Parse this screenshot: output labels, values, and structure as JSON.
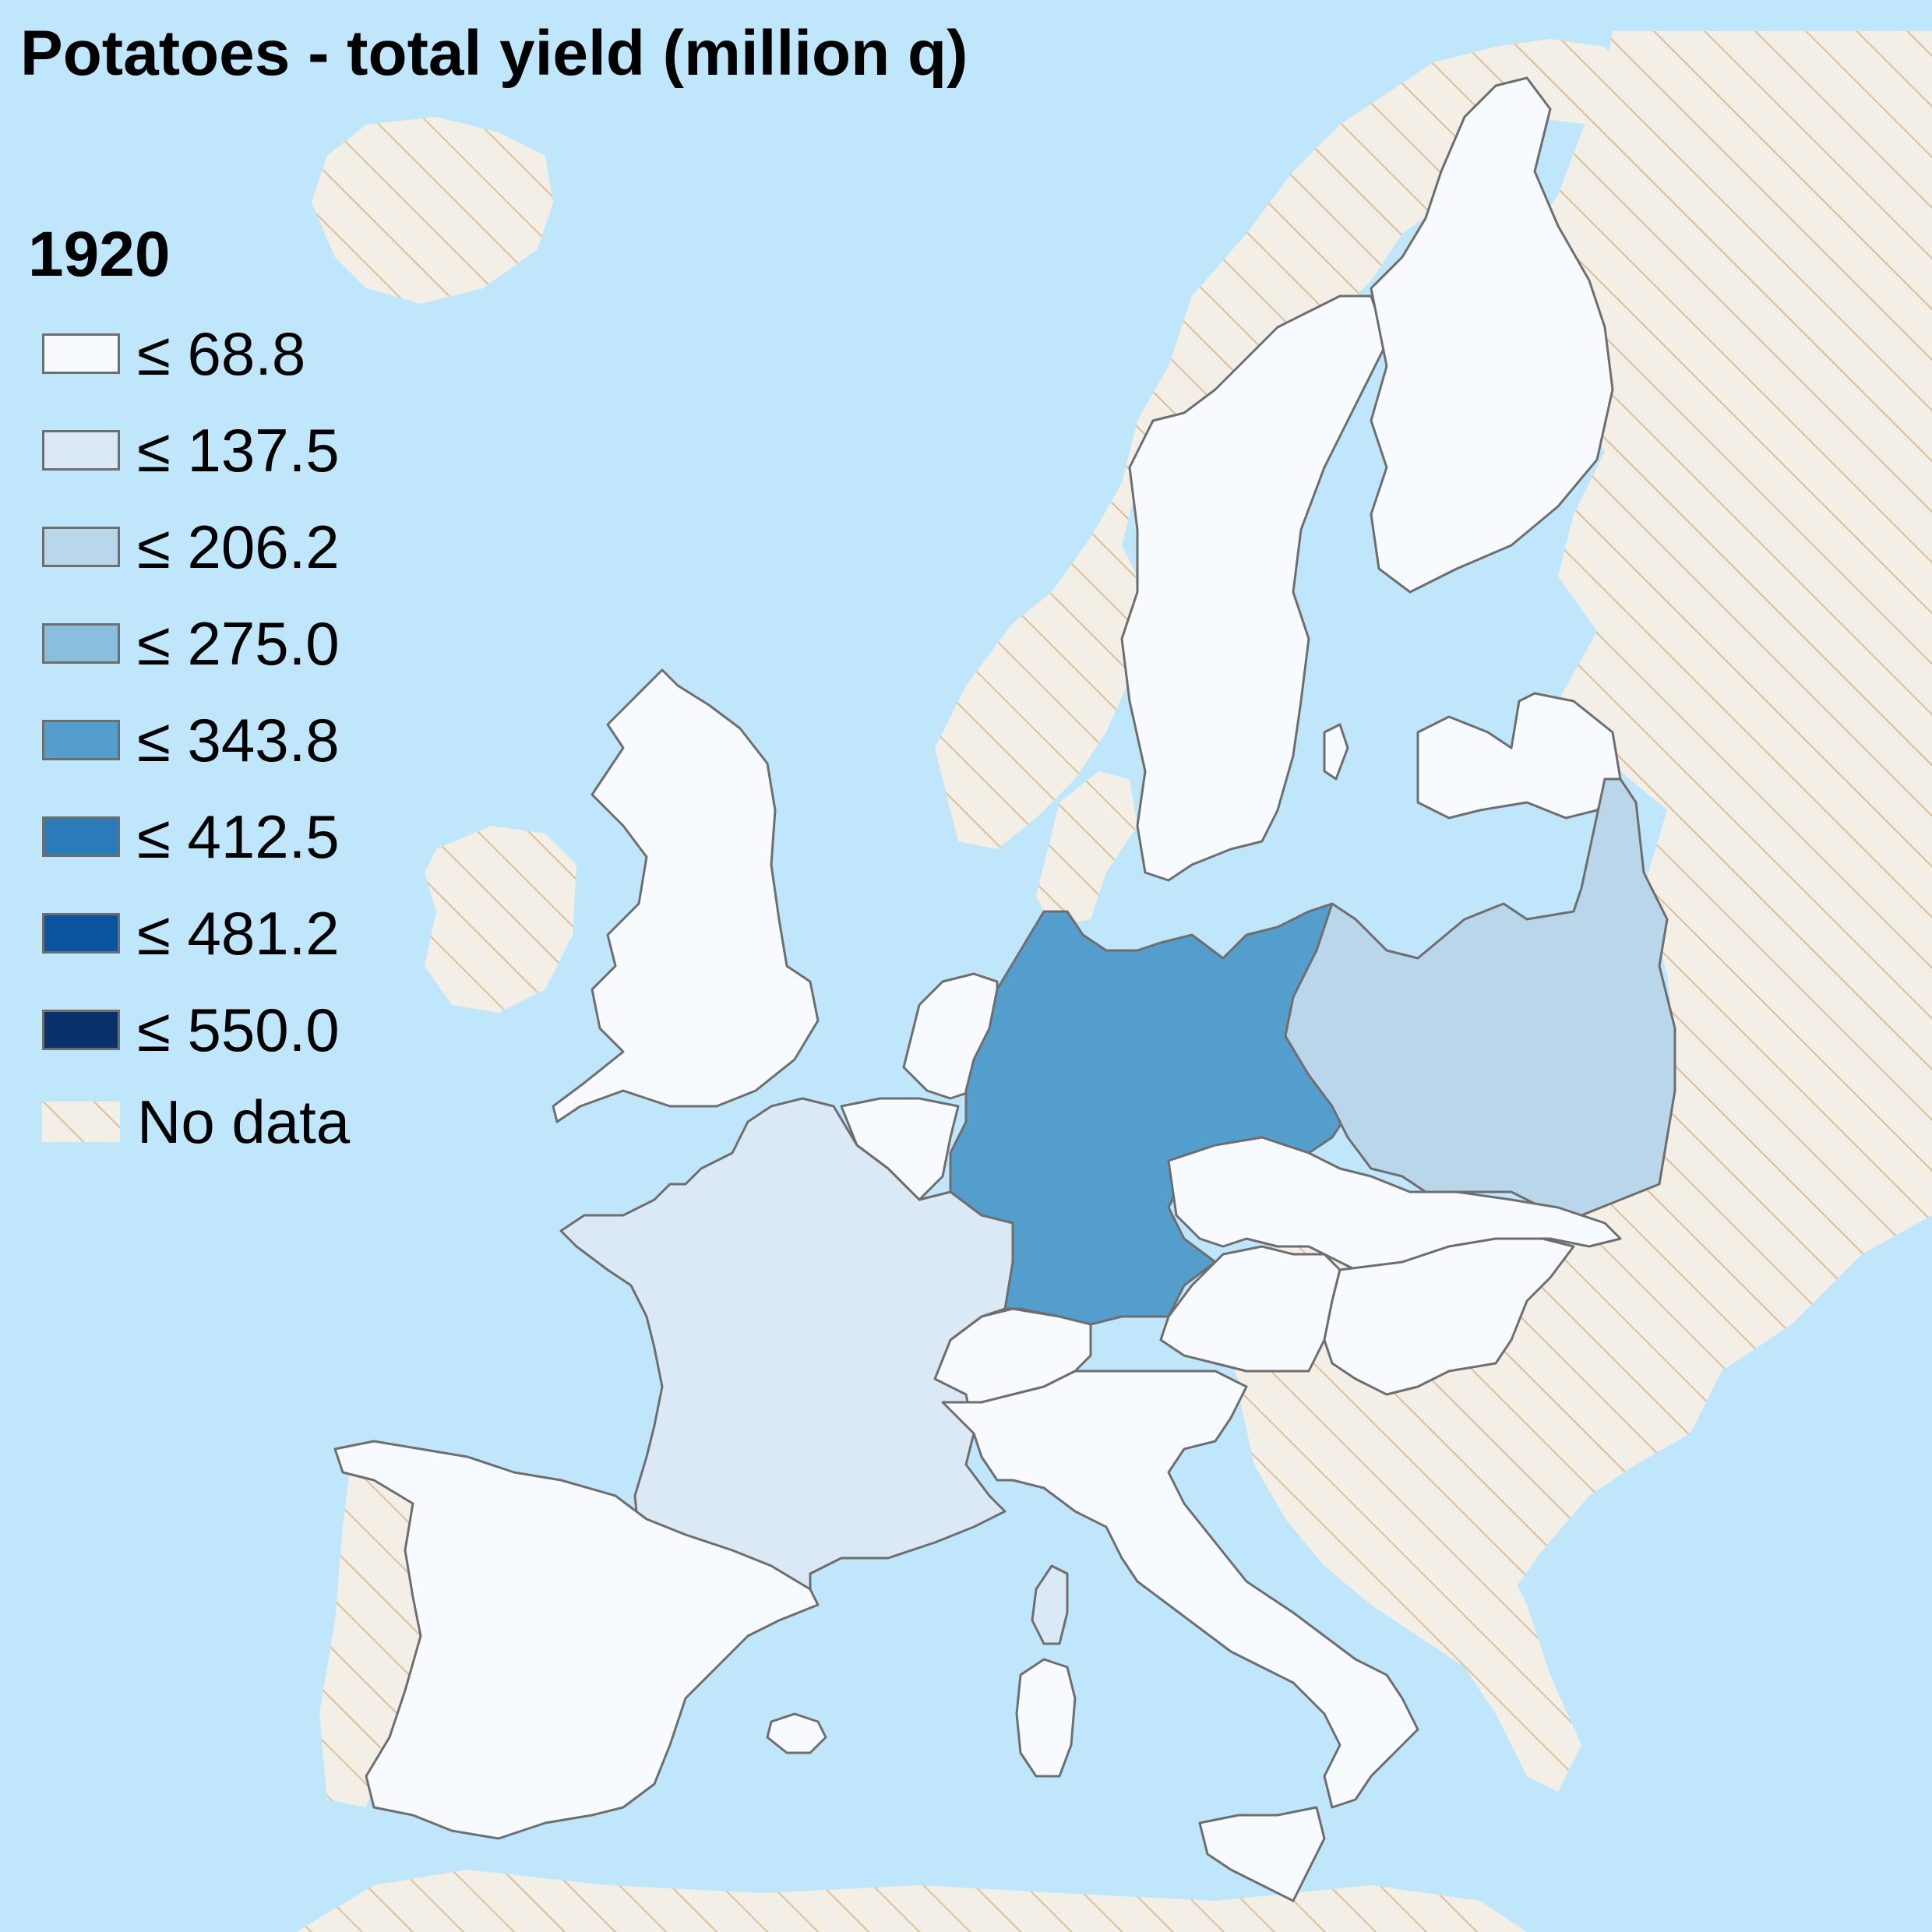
{
  "title": "Potatoes - total yield (million q)",
  "legend": {
    "year": "1920",
    "items": [
      {
        "label": "≤ 68.8",
        "color": "#f7fbff"
      },
      {
        "label": "≤ 137.5",
        "color": "#dbe9f6"
      },
      {
        "label": "≤ 206.2",
        "color": "#bad6eb"
      },
      {
        "label": "≤ 275.0",
        "color": "#89bedc"
      },
      {
        "label": "≤ 343.8",
        "color": "#539ecd"
      },
      {
        "label": "≤ 412.5",
        "color": "#2b7bba"
      },
      {
        "label": "≤ 481.2",
        "color": "#0b55a0"
      },
      {
        "label": "≤ 550.0",
        "color": "#08306b"
      }
    ],
    "nodata_label": "No data"
  },
  "colors": {
    "sea": "#bfe6fb",
    "land_nodata": "#f3efe6",
    "hatch_line": "#d9bf9a",
    "border": "#6e6e6e"
  },
  "regions": [
    {
      "name": "Germany",
      "bin": "≤ 343.8"
    },
    {
      "name": "Poland",
      "bin": "≤ 206.2"
    },
    {
      "name": "France",
      "bin": "≤ 137.5"
    },
    {
      "name": "Corsica",
      "bin": "≤ 137.5"
    },
    {
      "name": "United Kingdom",
      "bin": "≤ 68.8"
    },
    {
      "name": "Sweden",
      "bin": "≤ 68.8"
    },
    {
      "name": "Finland",
      "bin": "≤ 68.8"
    },
    {
      "name": "Latvia",
      "bin": "≤ 68.8"
    },
    {
      "name": "Netherlands",
      "bin": "≤ 68.8"
    },
    {
      "name": "Belgium",
      "bin": "≤ 68.8"
    },
    {
      "name": "Czechoslovakia",
      "bin": "≤ 68.8"
    },
    {
      "name": "Austria",
      "bin": "≤ 68.8"
    },
    {
      "name": "Hungary",
      "bin": "≤ 68.8"
    },
    {
      "name": "Switzerland",
      "bin": "≤ 68.8"
    },
    {
      "name": "Italy",
      "bin": "≤ 68.8"
    },
    {
      "name": "Spain",
      "bin": "≤ 68.8"
    }
  ]
}
